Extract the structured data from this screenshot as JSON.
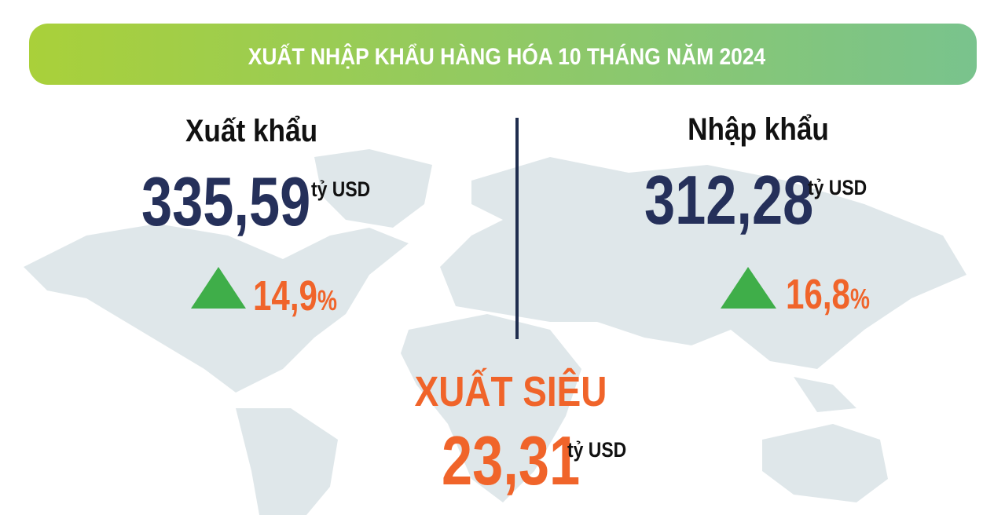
{
  "header": {
    "title": "XUẤT NHẬP KHẨU HÀNG HÓA 10 THÁNG NĂM 2024"
  },
  "export": {
    "label": "Xuất khẩu",
    "value": "335,59",
    "unit": "tỷ USD",
    "change": "14,9",
    "change_unit": "%"
  },
  "import": {
    "label": "Nhập khẩu",
    "value": "312,28",
    "unit": "tỷ USD",
    "change": "16,8",
    "change_unit": "%"
  },
  "surplus": {
    "label": "XUẤT SIÊU",
    "value": "23,31",
    "unit": "tỷ USD"
  }
}
